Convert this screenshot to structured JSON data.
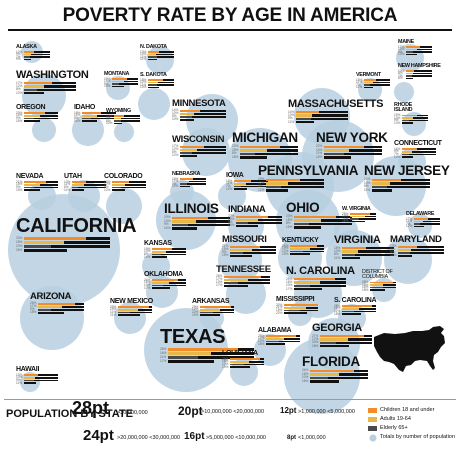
{
  "title": "POVERTY RATE BY AGE IN AMERICA",
  "colors": {
    "children": "#f28c28",
    "adults": "#e8b74a",
    "elderly": "#4a4a4a",
    "total": "#111111",
    "population_bubble": "#b7cfe0",
    "map": "#111111"
  },
  "chart_data": {
    "type": "bar",
    "title": "POVERTY RATE BY AGE IN AMERICA",
    "series": [
      {
        "name": "Children 18 and under"
      },
      {
        "name": "Adults 19-64"
      },
      {
        "name": "Elderly 65+"
      }
    ],
    "states": [
      {
        "name": "ALASKA",
        "size": 8,
        "values": [
          12,
          9,
          7,
          9
        ]
      },
      {
        "name": "WASHINGTON",
        "size": 20,
        "values": [
          17,
          12,
          8,
          12
        ]
      },
      {
        "name": "MONTANA",
        "size": 8,
        "values": [
          19,
          15,
          9,
          15
        ]
      },
      {
        "name": "N. DAKOTA",
        "size": 8,
        "values": [
          13,
          10,
          11,
          11
        ]
      },
      {
        "name": "S. DAKOTA",
        "size": 8,
        "values": [
          18,
          12,
          11,
          13
        ]
      },
      {
        "name": "MAINE",
        "size": 8,
        "values": [
          17,
          13,
          9,
          13
        ]
      },
      {
        "name": "NEW HAMPSHIRE",
        "size": 8,
        "values": [
          10,
          8,
          7,
          8
        ]
      },
      {
        "name": "VERMONT",
        "size": 8,
        "values": [
          15,
          11,
          7,
          11
        ]
      },
      {
        "name": "OREGON",
        "size": 12,
        "values": [
          20,
          15,
          9,
          15
        ]
      },
      {
        "name": "IDAHO",
        "size": 12,
        "values": [
          18,
          14,
          8,
          14
        ]
      },
      {
        "name": "WYOMING",
        "size": 8,
        "values": [
          12,
          9,
          8,
          10
        ]
      },
      {
        "name": "MINNESOTA",
        "size": 16,
        "values": [
          14,
          10,
          8,
          10
        ]
      },
      {
        "name": "MASSACHUSETTS",
        "size": 20,
        "values": [
          14,
          10,
          9,
          11
        ]
      },
      {
        "name": "RHODE ISLAND",
        "size": 8,
        "values": [
          19,
          13,
          9,
          13
        ]
      },
      {
        "name": "WISCONSIN",
        "size": 16,
        "values": [
          17,
          12,
          8,
          12
        ]
      },
      {
        "name": "MICHIGAN",
        "size": 24,
        "values": [
          22,
          15,
          8,
          15
        ]
      },
      {
        "name": "NEW YORK",
        "size": 24,
        "values": [
          22,
          14,
          11,
          15
        ]
      },
      {
        "name": "CONNECTICUT",
        "size": 12,
        "values": [
          14,
          9,
          7,
          10
        ]
      },
      {
        "name": "NEVADA",
        "size": 12,
        "values": [
          21,
          15,
          9,
          15
        ]
      },
      {
        "name": "UTAH",
        "size": 12,
        "values": [
          13,
          11,
          6,
          11
        ]
      },
      {
        "name": "COLORADO",
        "size": 12,
        "values": [
          16,
          12,
          8,
          12
        ]
      },
      {
        "name": "NEBRASKA",
        "size": 8,
        "values": [
          16,
          11,
          9,
          12
        ]
      },
      {
        "name": "IOWA",
        "size": 12,
        "values": [
          16,
          11,
          7,
          12
        ]
      },
      {
        "name": "PENNSYLVANIA",
        "size": 24,
        "values": [
          19,
          12,
          8,
          12
        ]
      },
      {
        "name": "NEW JERSEY",
        "size": 24,
        "values": [
          16,
          10,
          8,
          11
        ]
      },
      {
        "name": "CALIFORNIA",
        "size": 28,
        "values": [
          23,
          15,
          10,
          16
        ]
      },
      {
        "name": "ILLINOIS",
        "size": 24,
        "values": [
          20,
          13,
          9,
          14
        ]
      },
      {
        "name": "INDIANA",
        "size": 16,
        "values": [
          22,
          15,
          8,
          15
        ]
      },
      {
        "name": "OHIO",
        "size": 24,
        "values": [
          23,
          15,
          8,
          15
        ]
      },
      {
        "name": "W. VIRGINIA",
        "size": 8,
        "values": [
          25,
          19,
          11,
          18
        ]
      },
      {
        "name": "DELAWARE",
        "size": 8,
        "values": [
          17,
          11,
          7,
          12
        ]
      },
      {
        "name": "KANSAS",
        "size": 12,
        "values": [
          19,
          13,
          8,
          14
        ]
      },
      {
        "name": "MISSOURI",
        "size": 16,
        "values": [
          21,
          15,
          9,
          15
        ]
      },
      {
        "name": "KENTUCKY",
        "size": 12,
        "values": [
          25,
          19,
          12,
          19
        ]
      },
      {
        "name": "VIRGINIA",
        "size": 20,
        "values": [
          15,
          10,
          8,
          11
        ]
      },
      {
        "name": "MARYLAND",
        "size": 16,
        "values": [
          13,
          9,
          8,
          10
        ]
      },
      {
        "name": "OKLAHOMA",
        "size": 12,
        "values": [
          24,
          16,
          10,
          17
        ]
      },
      {
        "name": "TENNESSEE",
        "size": 16,
        "values": [
          26,
          17,
          10,
          17
        ]
      },
      {
        "name": "N. CAROLINA",
        "size": 20,
        "values": [
          25,
          16,
          10,
          17
        ]
      },
      {
        "name": "DISTRICT OF COLUMBIA",
        "size": 8,
        "values": [
          28,
          16,
          16,
          18
        ]
      },
      {
        "name": "ARIZONA",
        "size": 16,
        "values": [
          26,
          17,
          9,
          18
        ]
      },
      {
        "name": "NEW MEXICO",
        "size": 12,
        "values": [
          29,
          19,
          11,
          21
        ]
      },
      {
        "name": "ARKANSAS",
        "size": 12,
        "values": [
          29,
          19,
          12,
          19
        ]
      },
      {
        "name": "MISSISSIPPI",
        "size": 12,
        "values": [
          32,
          21,
          15,
          22
        ]
      },
      {
        "name": "S. CAROLINA",
        "size": 12,
        "values": [
          28,
          16,
          11,
          18
        ]
      },
      {
        "name": "TEXAS",
        "size": 28,
        "values": [
          26,
          16,
          11,
          17
        ]
      },
      {
        "name": "ALABAMA",
        "size": 12,
        "values": [
          28,
          17,
          12,
          18
        ]
      },
      {
        "name": "GEORGIA",
        "size": 20,
        "values": [
          27,
          17,
          10,
          18
        ]
      },
      {
        "name": "LOUISIANA",
        "size": 12,
        "values": [
          28,
          18,
          13,
          19
        ]
      },
      {
        "name": "FLORIDA",
        "size": 24,
        "values": [
          24,
          16,
          10,
          16
        ]
      },
      {
        "name": "HAWAII",
        "size": 12,
        "values": [
          13,
          10,
          9,
          11
        ]
      }
    ]
  },
  "legend": {
    "population_label": "POPULATION BY STATE",
    "sizes": [
      {
        "label": "28pt",
        "range": ">30,000,000"
      },
      {
        "label": "24pt",
        "range": ">20,000,000 <30,000,000"
      },
      {
        "label": "20pt",
        "range": ">10,000,000 <20,000,000"
      },
      {
        "label": "16pt",
        "range": ">5,000,000 <10,000,000"
      },
      {
        "label": "12pt",
        "range": ">1,000,000 <5,000,000"
      },
      {
        "label": "8pt",
        "range": "<1,000,000"
      }
    ],
    "keys": [
      {
        "label": "Children 18 and under"
      },
      {
        "label": "Adults 19-64"
      },
      {
        "label": "Elderly 65+"
      },
      {
        "label": "Totals by number of population"
      }
    ]
  }
}
